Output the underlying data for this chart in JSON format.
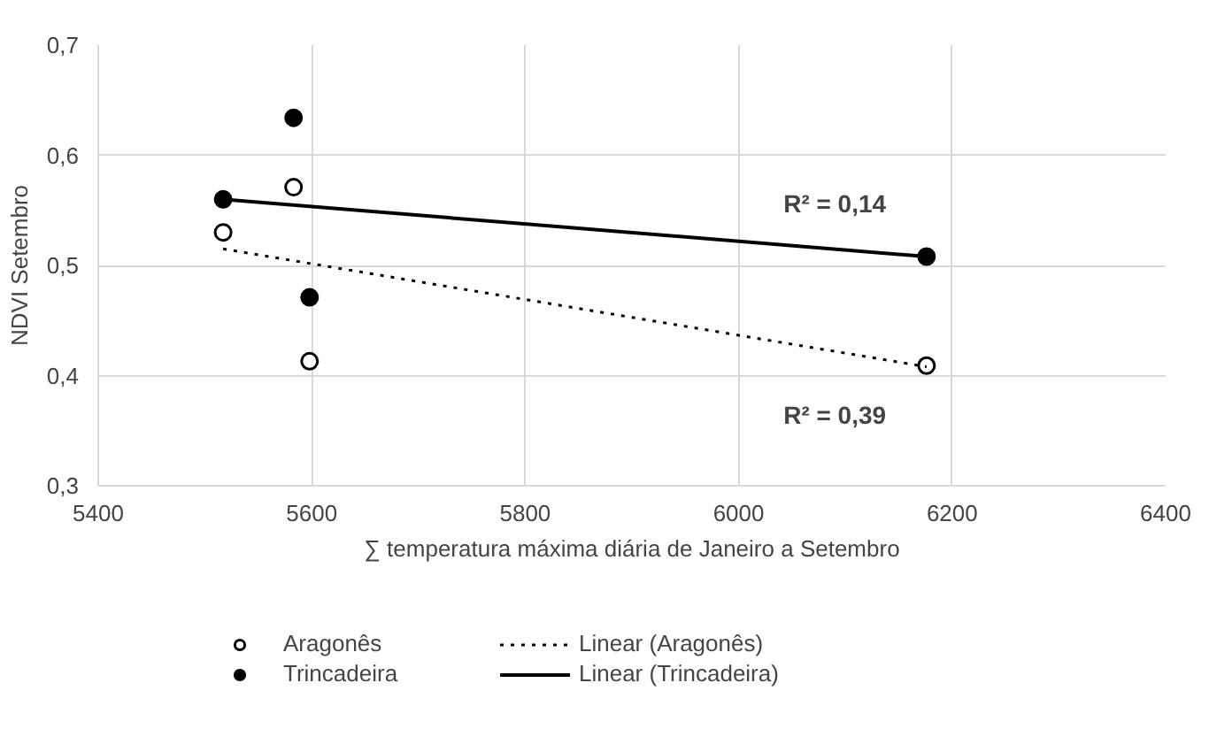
{
  "chart_data": {
    "type": "scatter",
    "xlabel": "∑ temperatura máxima diária de Janeiro a Setembro",
    "ylabel": "NDVI Setembro",
    "xlim": [
      5400,
      6400
    ],
    "xticks": [
      5400,
      5600,
      5800,
      6000,
      6200,
      6400
    ],
    "ylim": [
      0.3,
      0.7
    ],
    "yticks": [
      {
        "value": 0.3,
        "label": "0,3"
      },
      {
        "value": 0.4,
        "label": "0,4"
      },
      {
        "value": 0.5,
        "label": "0,5"
      },
      {
        "value": 0.6,
        "label": "0,6"
      },
      {
        "value": 0.7,
        "label": "0,7"
      }
    ],
    "grid": true,
    "legend": "bottom",
    "marker": "circle",
    "series": [
      {
        "name": "Aragonês",
        "color": "#ffffff",
        "x": [
          5517,
          5583,
          5598,
          6176
        ],
        "values": [
          0.53,
          0.571,
          0.413,
          0.409
        ]
      },
      {
        "name": "Trincadeira",
        "color": "#000000",
        "x": [
          5517,
          5583,
          5598,
          6176
        ],
        "values": [
          0.56,
          0.634,
          0.471,
          0.508
        ]
      },
      {
        "name": "Linear (Aragonês)",
        "type": "line",
        "color": "#000000",
        "line_style": "dotted",
        "marker": "none",
        "x": [
          5517,
          6176
        ],
        "values": [
          0.515,
          0.408
        ]
      },
      {
        "name": "Linear (Trincadeira)",
        "type": "line",
        "color": "#000000",
        "line_style": "solid",
        "marker": "none",
        "x": [
          5517,
          6176
        ],
        "values": [
          0.56,
          0.508
        ]
      }
    ],
    "annotations": [
      "R² = 0,14",
      "R² = 0,39"
    ]
  }
}
